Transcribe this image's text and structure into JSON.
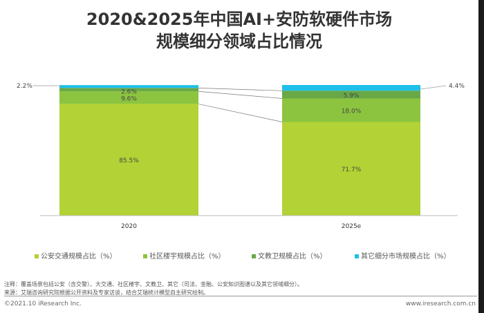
{
  "title_line1": "2020&2025年中国AI+安防软硬件市场",
  "title_line2": "规模细分领域占比情况",
  "chart_data": {
    "type": "bar",
    "stacked": true,
    "categories": [
      "2020",
      "2025e"
    ],
    "series": [
      {
        "name": "公安交通规模占比（%）",
        "values": [
          85.5,
          71.7
        ],
        "color": "#b3d235"
      },
      {
        "name": "社区楼宇规模占比（%）",
        "values": [
          9.6,
          18.0
        ],
        "color": "#8cc43f"
      },
      {
        "name": "文教卫规模占比（%）",
        "values": [
          2.6,
          5.9
        ],
        "color": "#68a846"
      },
      {
        "name": "其它细分市场规模占比（%）",
        "values": [
          2.2,
          4.4
        ],
        "color": "#1fbfe8"
      }
    ],
    "ylim": [
      0,
      100
    ],
    "legend": "bottom",
    "grid": false
  },
  "notes": {
    "note": "注释：覆盖场景包括公安（含交警）、大交通、社区楼宇、文教卫、其它（司法、金融、公安知识图谱以及其它领域细分）。",
    "source": "来源：艾瑞咨询研究院根据公开资料及专家访谈，结合艾瑞统计模型自主研究绘制。"
  },
  "footer": {
    "copyright": "©2021.10 iResearch Inc.",
    "website": "www.iresearch.com.cn"
  }
}
